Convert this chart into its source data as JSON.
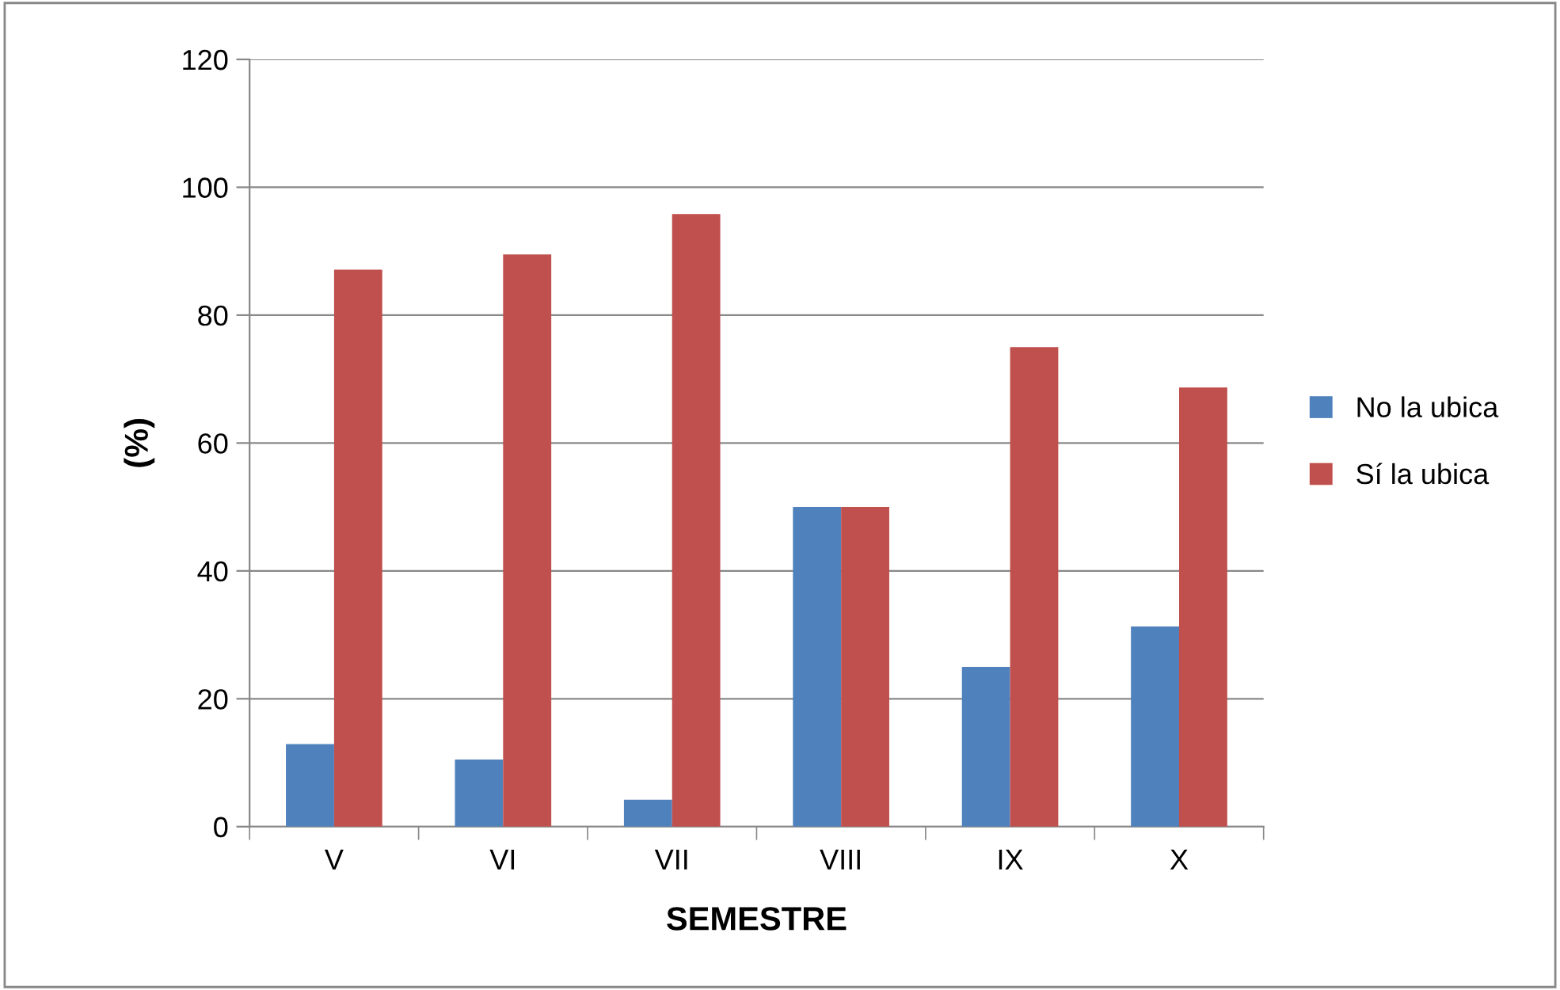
{
  "chart_data": {
    "type": "bar",
    "xlabel": "SEMESTRE",
    "ylabel": "(%)",
    "categories": [
      "V",
      "VI",
      "VII",
      "VIII",
      "IX",
      "X"
    ],
    "series": [
      {
        "name": "No la ubica",
        "color": "#4f81bd",
        "values": [
          12.9,
          10.5,
          4.2,
          50,
          25,
          31.3
        ]
      },
      {
        "name": "Sí la ubica",
        "color": "#c0504d",
        "values": [
          87.1,
          89.5,
          95.8,
          50,
          75,
          68.7
        ]
      }
    ],
    "ylim": [
      0,
      120
    ],
    "yticks": [
      0,
      20,
      40,
      60,
      80,
      100,
      120
    ],
    "grid": "y",
    "legend": "right"
  }
}
